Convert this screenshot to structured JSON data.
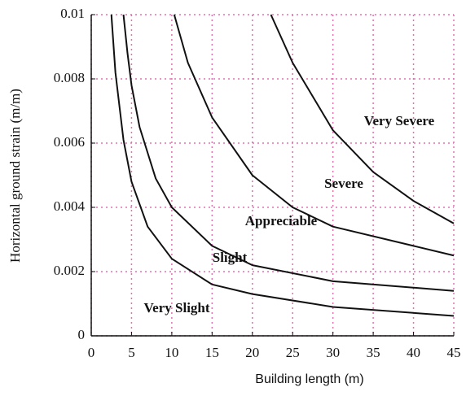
{
  "chart_data": {
    "type": "line",
    "x_label": "Building length (m)",
    "y_label": "Horizontal ground strain (m/m)",
    "xlim": [
      0,
      45
    ],
    "xticks": [
      0,
      5,
      10,
      15,
      20,
      25,
      30,
      35,
      40,
      45
    ],
    "ylim": [
      0,
      0.01
    ],
    "yticks": [
      0,
      0.002,
      0.004,
      0.006,
      0.008,
      0.01
    ],
    "grid": true,
    "grid_color": "#e070b0",
    "series": [
      {
        "color": "#111111",
        "x": [
          2.5,
          3,
          4,
          5,
          7,
          10,
          15,
          20,
          30,
          45
        ],
        "values": [
          0.01,
          0.0082,
          0.0061,
          0.0048,
          0.0034,
          0.0024,
          0.0016,
          0.0013,
          0.0009,
          0.00062
        ]
      },
      {
        "color": "#111111",
        "x": [
          4,
          4.5,
          5,
          6,
          8,
          10,
          15,
          20,
          30,
          45
        ],
        "values": [
          0.01,
          0.0088,
          0.0078,
          0.0065,
          0.0049,
          0.004,
          0.0028,
          0.0022,
          0.0017,
          0.0014
        ]
      },
      {
        "color": "#111111",
        "x": [
          10.3,
          12,
          15,
          20,
          25,
          30,
          40,
          45
        ],
        "values": [
          0.01,
          0.0085,
          0.0068,
          0.005,
          0.004,
          0.0034,
          0.0028,
          0.0025
        ]
      },
      {
        "color": "#111111",
        "x": [
          22.3,
          25,
          30,
          35,
          40,
          45
        ],
        "values": [
          0.01,
          0.0085,
          0.0064,
          0.0051,
          0.0042,
          0.0035
        ]
      }
    ],
    "annotations": [
      "Very Severe",
      "Severe",
      "Appreciable",
      "Slight",
      "Very Slight"
    ]
  }
}
